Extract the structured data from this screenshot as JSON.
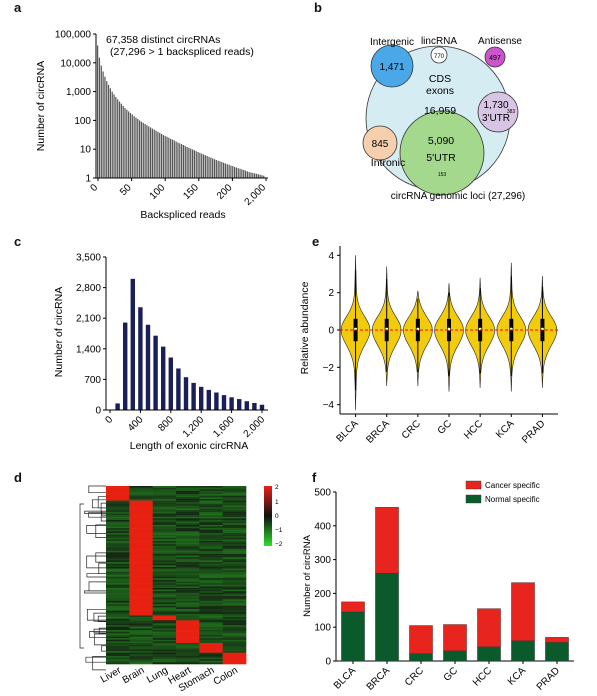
{
  "panels": {
    "a": "a",
    "b": "b",
    "c": "c",
    "d": "d",
    "e": "e",
    "f": "f"
  },
  "chart_data": [
    {
      "panel": "a",
      "type": "bar",
      "scale": "log",
      "annotation_line1": "67,358  distinct circRNAs",
      "annotation_line2": "(27,296 > 1 backspliced reads)",
      "xlabel": "Backspliced reads",
      "ylabel": "Number of circRNA",
      "xlim": [
        0,
        2000
      ],
      "ylim": [
        1,
        100000
      ],
      "x_tick_labels": [
        "0",
        "50",
        "100",
        "150",
        "200",
        "2,000"
      ],
      "y_tick_labels": [
        "1",
        "10",
        "100",
        "1,000",
        "10,000",
        "100,000"
      ],
      "values": [
        40000,
        15000,
        8000,
        5000,
        3300,
        2300,
        1700,
        1300,
        1000,
        800,
        650,
        540,
        450,
        380,
        320,
        270,
        235,
        205,
        180,
        160,
        140,
        125,
        112,
        100,
        90,
        82,
        75,
        68,
        62,
        57,
        52,
        48,
        44,
        40,
        37,
        34,
        31,
        29,
        27,
        25,
        23,
        21.5,
        20,
        18.5,
        17,
        16,
        15,
        14,
        13,
        12,
        11.2,
        10.5,
        9.8,
        9.2,
        8.6,
        8,
        7.5,
        7,
        6.6,
        6.2,
        5.8,
        5.4,
        5.1,
        4.8,
        4.5,
        4.2,
        4,
        3.8,
        3.6,
        3.4,
        3.2,
        3,
        2.9,
        2.7,
        2.6,
        2.4,
        2.3,
        2.2,
        2.1,
        2,
        1.9,
        1.8,
        1.7,
        1.6,
        1.55,
        1.5,
        1.45,
        1.4,
        1.35,
        1.3,
        1.25,
        1.2
      ]
    },
    {
      "panel": "b",
      "type": "venn",
      "caption": "circRNA genomic loci (27,296)",
      "sets": [
        {
          "name": "Intergenic",
          "count": "1,471",
          "color": "#4aa8e8"
        },
        {
          "name": "lincRNA",
          "count": "770",
          "color": "#ffffff"
        },
        {
          "name": "Antisense",
          "count": "497",
          "color": "#cc55cc"
        },
        {
          "name": "CDS exons",
          "count": "16,959",
          "color": "#d6ecf3"
        },
        {
          "name": "3'UTR",
          "count": "1,730",
          "extra": "383",
          "color": "#d8c4e4"
        },
        {
          "name": "Intronic",
          "count": "845",
          "color": "#f5cfae"
        },
        {
          "name": "5'UTR",
          "count": "5,090",
          "extra": "153",
          "color": "#a4d88c"
        }
      ]
    },
    {
      "panel": "c",
      "type": "bar",
      "xlabel": "Length of exonic circRNA",
      "ylabel": "Number of circRNA",
      "xlim": [
        0,
        2000
      ],
      "ylim": [
        0,
        3500
      ],
      "x_tick_labels": [
        "0",
        "400",
        "800",
        "1,200",
        "1,600",
        "2,000"
      ],
      "y_tick_labels": [
        "0",
        "700",
        "1,400",
        "2,100",
        "2,800",
        "3,500"
      ],
      "x": [
        100,
        200,
        300,
        400,
        500,
        600,
        700,
        800,
        900,
        1000,
        1100,
        1200,
        1300,
        1400,
        1500,
        1600,
        1700,
        1800,
        1900,
        2000
      ],
      "values": [
        150,
        2000,
        3000,
        2350,
        1950,
        1700,
        1450,
        1200,
        950,
        750,
        620,
        530,
        460,
        400,
        340,
        290,
        250,
        200,
        160,
        120
      ],
      "color": "#1a1f5a"
    },
    {
      "panel": "d",
      "type": "heatmap",
      "scale_labels": [
        "2",
        "1",
        "0",
        "−1",
        "−2"
      ],
      "tissues": [
        "Liver",
        "Brain",
        "Lung",
        "Heart",
        "Stomach",
        "Colon"
      ]
    },
    {
      "panel": "e",
      "type": "violin",
      "ylabel": "Relative abundance",
      "ylim": [
        -4.5,
        4.5
      ],
      "y_tick_labels": [
        "4",
        "2",
        "0",
        "−2",
        "−4"
      ],
      "categories": [
        "BLCA",
        "BRCA",
        "CRC",
        "GC",
        "HCC",
        "KCA",
        "PRAD"
      ],
      "maxes": [
        4.0,
        3.4,
        2.1,
        2.5,
        2.8,
        3.6,
        2.9
      ],
      "mins": [
        -4.3,
        -3.0,
        -3.0,
        -3.3,
        -3.1,
        -3.3,
        -3.1
      ],
      "fill": "#f2cc0c",
      "zero_line": "#ff0000"
    },
    {
      "panel": "f",
      "type": "bar",
      "stacked": true,
      "ylabel": "Number of circRNA",
      "ylim": [
        0,
        500
      ],
      "y_tick_labels": [
        "0",
        "100",
        "200",
        "300",
        "400",
        "500"
      ],
      "categories": [
        "BLCA",
        "BRCA",
        "CRC",
        "GC",
        "HCC",
        "KCA",
        "PRAD"
      ],
      "legend_position": "top-right",
      "series": [
        {
          "name": "Normal specific",
          "values": [
            145,
            260,
            22,
            30,
            42,
            60,
            55
          ],
          "color": "#0b5a2b"
        },
        {
          "name": "Cancer specific",
          "values": [
            30,
            195,
            83,
            78,
            113,
            172,
            15
          ],
          "color": "#e8241f"
        }
      ]
    }
  ]
}
